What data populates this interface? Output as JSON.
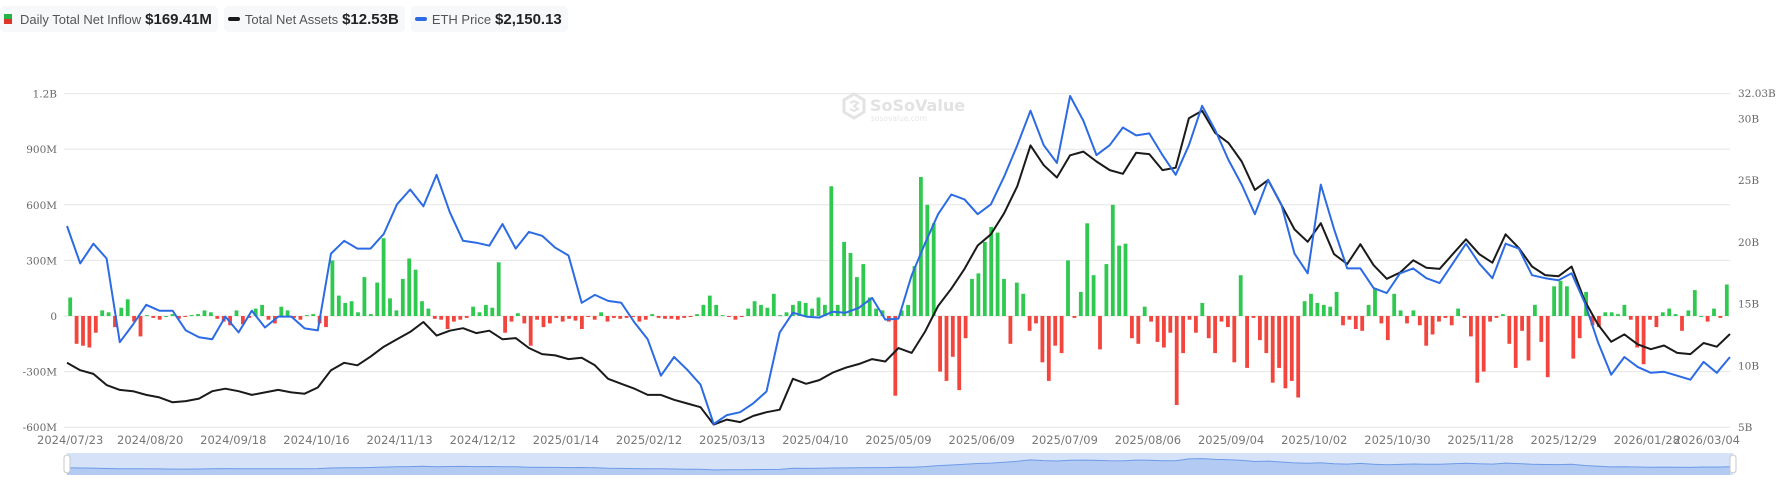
{
  "legend": [
    {
      "label": "Daily Total Net Inflow",
      "value": "$169.41M",
      "swatch": "bar"
    },
    {
      "label": "Total Net Assets",
      "value": "$12.53B",
      "swatch": "line",
      "color": "#1a1a1a"
    },
    {
      "label": "ETH Price",
      "value": "$2,150.13",
      "swatch": "line",
      "color": "#2c6be3"
    }
  ],
  "colors": {
    "inflow_pos": "#2fc94f",
    "inflow_neg": "#f2453d",
    "net_assets": "#1a1a1a",
    "eth_price": "#2c6be3",
    "grid": "#e6e6e6",
    "slider_bg": "#d6e2f8",
    "slider_fill": "#b3cbf3",
    "slider_line": "#6d9be8"
  },
  "watermark": {
    "brand": "SoSoValue",
    "site": "sosovalue.com"
  },
  "chart_data": {
    "type": "bar+line",
    "title": "",
    "left_axis": {
      "label": "Daily Total Net Inflow",
      "ticks": [
        "1.2B",
        "900M",
        "600M",
        "300M",
        "0",
        "-300M",
        "-600M"
      ],
      "range": [
        -600000000,
        1200000000
      ]
    },
    "right_axis": {
      "label": "Total Net Assets",
      "ticks": [
        "32.03B",
        "30B",
        "25B",
        "20B",
        "15B",
        "10B",
        "5B"
      ],
      "range": [
        5,
        32.03
      ]
    },
    "x_ticks": [
      "2024/07/23",
      "2024/08/20",
      "2024/09/18",
      "2024/10/16",
      "2024/11/13",
      "2024/12/12",
      "2025/01/14",
      "2025/02/12",
      "2025/03/13",
      "2025/04/10",
      "2025/05/09",
      "2025/06/09",
      "2025/07/09",
      "2025/08/06",
      "2025/09/04",
      "2025/10/02",
      "2025/10/30",
      "2025/11/28",
      "2025/12/29",
      "2026/01/28",
      "2026/03/04"
    ],
    "x_range": [
      "2024/07/23",
      "2026/03/04"
    ],
    "grid": true,
    "legend_position": "top-left",
    "series": [
      {
        "name": "Total Net Assets (B USD)",
        "type": "line",
        "axis": "right",
        "values": [
          10.2,
          9.6,
          9.3,
          8.4,
          8.0,
          7.9,
          7.6,
          7.4,
          7.0,
          7.1,
          7.3,
          7.9,
          8.1,
          7.9,
          7.6,
          7.8,
          8.0,
          7.8,
          7.7,
          8.2,
          9.6,
          10.2,
          10.0,
          10.7,
          11.5,
          12.1,
          12.7,
          13.5,
          12.4,
          12.8,
          13.0,
          12.6,
          12.8,
          12.1,
          12.2,
          11.4,
          10.9,
          10.8,
          10.5,
          10.6,
          10.0,
          8.9,
          8.5,
          8.1,
          7.6,
          7.6,
          7.2,
          6.9,
          6.6,
          5.2,
          5.6,
          5.4,
          5.9,
          6.2,
          6.4,
          8.9,
          8.5,
          8.8,
          9.4,
          9.8,
          10.1,
          10.5,
          10.3,
          11.4,
          11.0,
          12.7,
          14.8,
          16.2,
          17.8,
          19.7,
          20.6,
          22.3,
          24.5,
          27.8,
          26.2,
          25.2,
          27.0,
          27.3,
          26.5,
          25.8,
          25.5,
          27.2,
          27.1,
          25.8,
          26.0,
          30.0,
          30.6,
          28.8,
          28.0,
          26.5,
          24.2,
          25.0,
          23.0,
          21.0,
          20.0,
          21.5,
          19.0,
          18.2,
          19.8,
          18.1,
          17.0,
          17.5,
          18.5,
          17.9,
          17.8,
          19.0,
          20.2,
          19.0,
          18.3,
          20.6,
          19.5,
          18.0,
          17.3,
          17.2,
          18.0,
          15.2,
          13.3,
          11.9,
          12.5,
          11.7,
          11.3,
          11.6,
          11.0,
          10.9,
          11.8,
          11.5,
          12.53
        ]
      },
      {
        "name": "ETH Price (USD)",
        "type": "line",
        "axis": "hidden",
        "values": [
          3480,
          3100,
          3300,
          3150,
          2300,
          2480,
          2680,
          2620,
          2620,
          2420,
          2350,
          2330,
          2560,
          2400,
          2620,
          2450,
          2560,
          2560,
          2440,
          2420,
          3200,
          3330,
          3250,
          3250,
          3400,
          3700,
          3850,
          3680,
          4000,
          3620,
          3330,
          3310,
          3280,
          3500,
          3250,
          3420,
          3380,
          3260,
          3180,
          2700,
          2780,
          2720,
          2700,
          2500,
          2330,
          1960,
          2150,
          2020,
          1870,
          1470,
          1560,
          1590,
          1680,
          1800,
          2400,
          2600,
          2560,
          2550,
          2610,
          2600,
          2650,
          2750,
          2530,
          2540,
          2980,
          3300,
          3600,
          3800,
          3750,
          3600,
          3700,
          3980,
          4300,
          4650,
          4300,
          4120,
          4800,
          4550,
          4200,
          4300,
          4480,
          4400,
          4420,
          4200,
          4000,
          4300,
          4700,
          4450,
          4150,
          3900,
          3600,
          3950,
          3700,
          3200,
          3000,
          3900,
          3450,
          3050,
          3050,
          2850,
          2800,
          3000,
          3050,
          2950,
          2900,
          3100,
          3300,
          3100,
          2950,
          3300,
          3250,
          2980,
          2950,
          2930,
          3000,
          2700,
          2300,
          1970,
          2150,
          2050,
          1990,
          2000,
          1960,
          1920,
          2100,
          1990,
          2150
        ]
      },
      {
        "name": "Daily Total Net Inflow (M USD)",
        "type": "bar",
        "axis": "left",
        "values": [
          100,
          -150,
          -160,
          -170,
          -90,
          30,
          20,
          -60,
          45,
          90,
          -30,
          -110,
          5,
          -10,
          -20,
          0,
          10,
          -15,
          -5,
          5,
          10,
          30,
          20,
          -15,
          -30,
          -50,
          30,
          -45,
          -10,
          40,
          60,
          -20,
          -40,
          50,
          30,
          -10,
          -20,
          5,
          10,
          -40,
          -60,
          300,
          110,
          70,
          80,
          20,
          210,
          10,
          180,
          420,
          95,
          30,
          200,
          310,
          250,
          80,
          40,
          -15,
          -20,
          -70,
          -30,
          -20,
          -10,
          50,
          20,
          60,
          45,
          290,
          -90,
          -30,
          15,
          -40,
          -160,
          -20,
          -60,
          -40,
          -10,
          -30,
          -15,
          -25,
          -70,
          -5,
          -20,
          20,
          -30,
          -10,
          -15,
          -10,
          -5,
          -30,
          -20,
          10,
          -10,
          -15,
          -15,
          -20,
          -10,
          -5,
          10,
          60,
          110,
          60,
          5,
          -5,
          -20,
          -5,
          40,
          80,
          60,
          45,
          120,
          5,
          20,
          60,
          80,
          70,
          40,
          100,
          60,
          700,
          60,
          400,
          340,
          210,
          280,
          100,
          40,
          30,
          -30,
          -430,
          30,
          60,
          270,
          750,
          600,
          500,
          -300,
          -350,
          -220,
          -400,
          -120,
          200,
          230,
          400,
          480,
          450,
          200,
          -150,
          180,
          120,
          -80,
          -40,
          -250,
          -350,
          -160,
          -200,
          300,
          -10,
          130,
          500,
          220,
          -180,
          280,
          600,
          380,
          390,
          -120,
          -150,
          50,
          -30,
          -140,
          -170,
          -90,
          -480,
          -200,
          -20,
          -90,
          70,
          -120,
          -200,
          -30,
          -60,
          -250,
          220,
          -280,
          -10,
          -130,
          -200,
          -360,
          -280,
          -390,
          -350,
          -440,
          80,
          120,
          70,
          60,
          50,
          130,
          -50,
          -20,
          -70,
          -80,
          60,
          150,
          -40,
          -130,
          120,
          30,
          -40,
          30,
          -50,
          -160,
          -100,
          -30,
          -10,
          -50,
          40,
          -10,
          -110,
          -360,
          -300,
          -30,
          -10,
          10,
          -150,
          -280,
          -80,
          -240,
          60,
          -140,
          -330,
          160,
          190,
          160,
          -230,
          -120,
          130,
          -50,
          -60,
          20,
          20,
          10,
          60,
          -20,
          -170,
          -260,
          -20,
          -60,
          20,
          40,
          10,
          -80,
          30,
          140,
          0,
          -30,
          40,
          -10,
          170
        ]
      }
    ]
  },
  "slider": {
    "start": "2024/07/23",
    "end": "2026/03/04"
  }
}
